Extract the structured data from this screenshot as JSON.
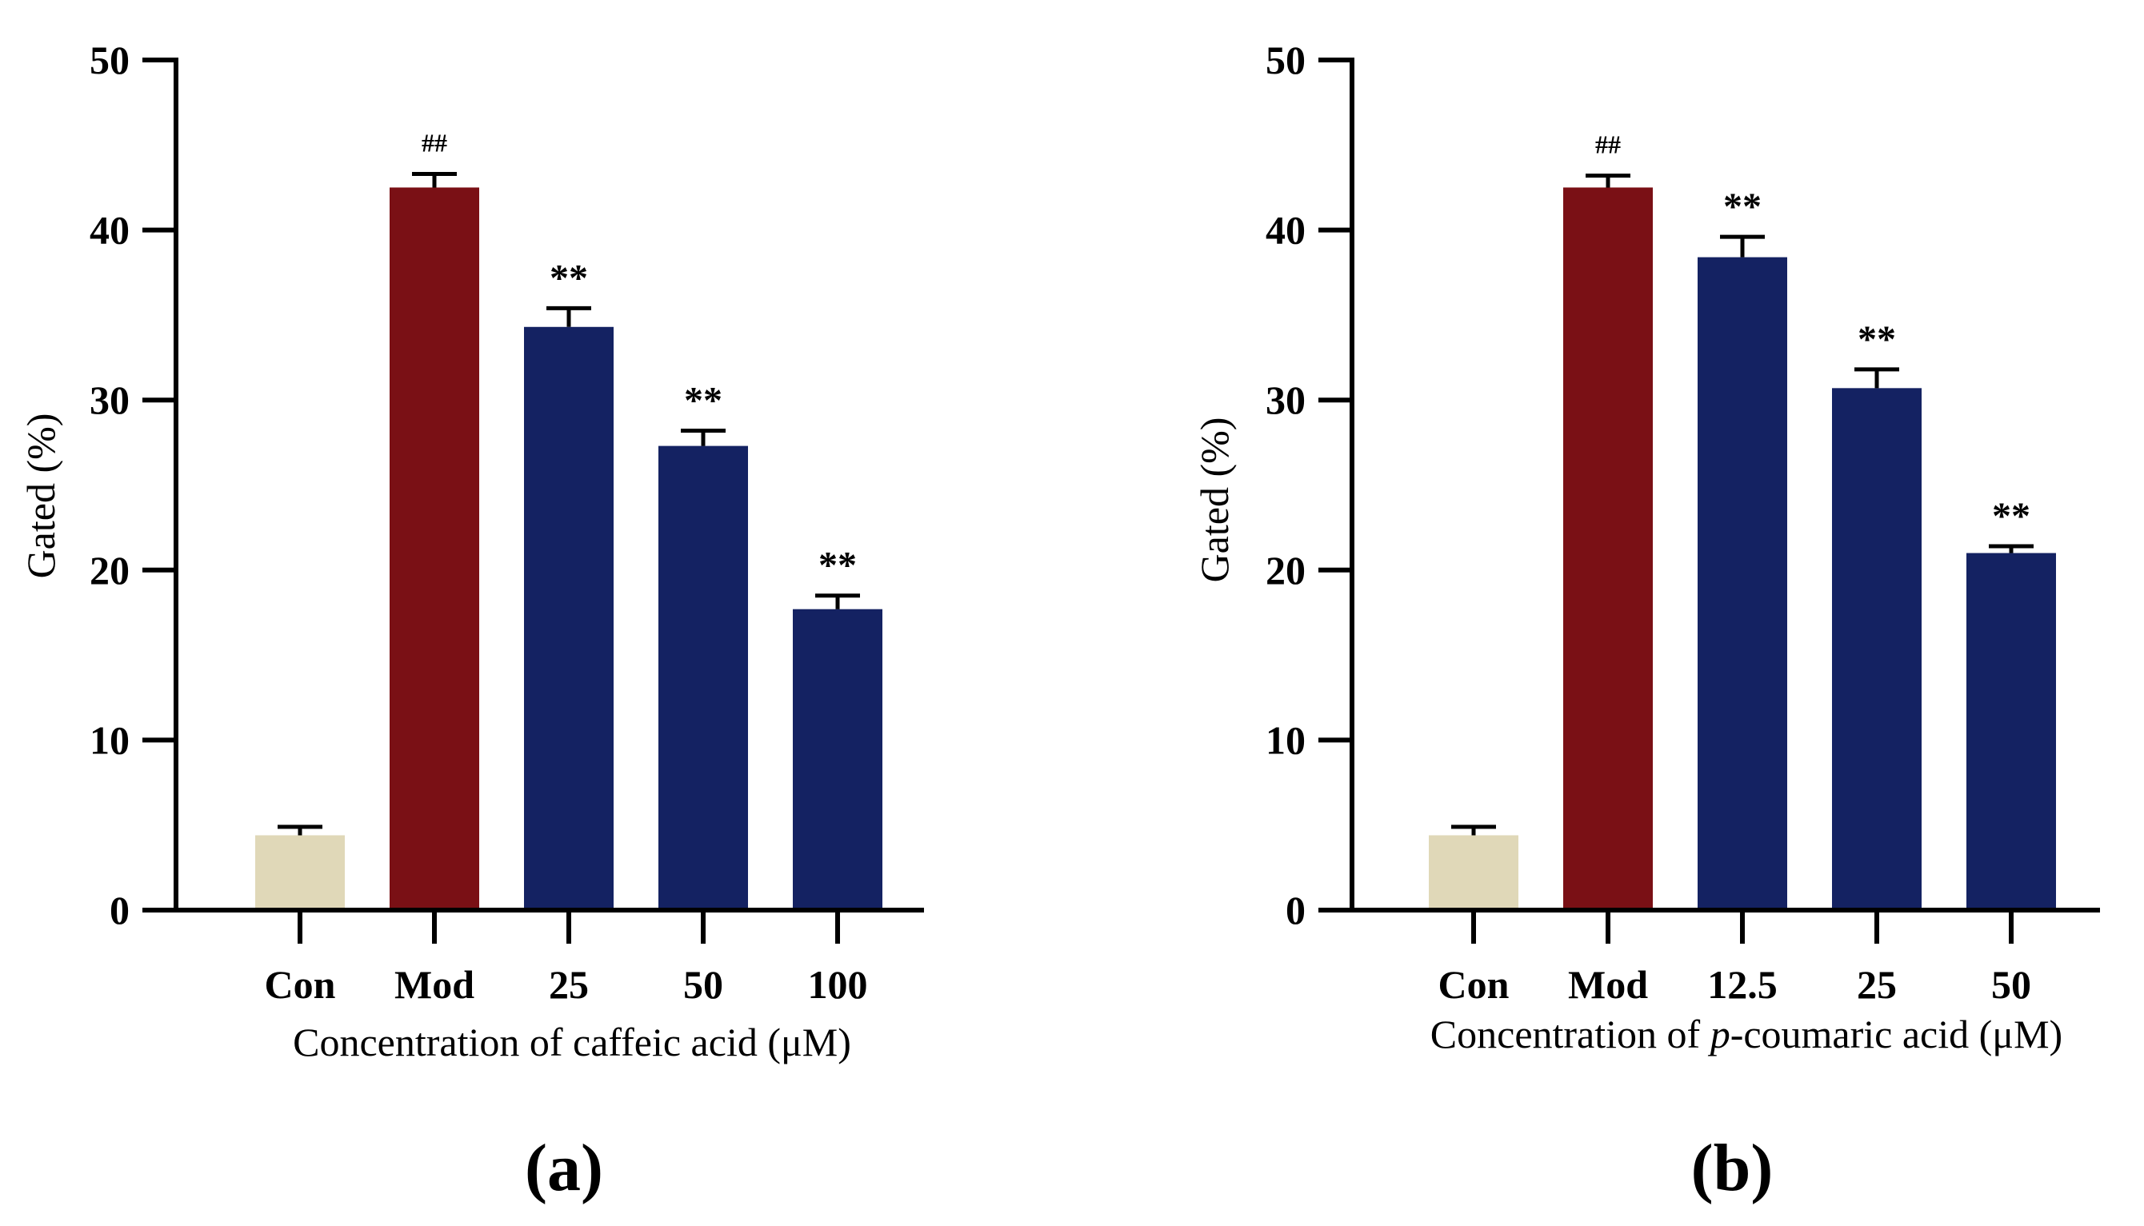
{
  "chart_data": [
    {
      "type": "bar",
      "panel_label": "(a)",
      "ylabel": "Gated (%)",
      "xlabel_prefix": "Concentration of",
      "xlabel_compound": "caffeic acid",
      "xlabel_unit": "(μM)",
      "compound_italic_prefix": "",
      "ylim": [
        0,
        50
      ],
      "yticks": [
        "0",
        "10",
        "20",
        "30",
        "40",
        "50"
      ],
      "categories": [
        "Con",
        "Mod",
        "25",
        "50",
        "100"
      ],
      "values": [
        4.4,
        42.5,
        34.3,
        27.3,
        17.7
      ],
      "errors": [
        0.5,
        0.8,
        1.1,
        0.9,
        0.8
      ],
      "significance": [
        "",
        "##",
        "**",
        "**",
        "**"
      ],
      "bar_colors": [
        "#e0d8b8",
        "#7a1015",
        "#142262",
        "#142262",
        "#142262"
      ],
      "grid": false,
      "legend": "none"
    },
    {
      "type": "bar",
      "panel_label": "(b)",
      "ylabel": "Gated (%)",
      "xlabel_prefix": "Concentration of",
      "xlabel_compound": "-coumaric acid",
      "xlabel_unit": "(μM)",
      "compound_italic_prefix": "p",
      "ylim": [
        0,
        50
      ],
      "yticks": [
        "0",
        "10",
        "20",
        "30",
        "40",
        "50"
      ],
      "categories": [
        "Con",
        "Mod",
        "12.5",
        "25",
        "50"
      ],
      "values": [
        4.4,
        42.5,
        38.4,
        30.7,
        21.0
      ],
      "errors": [
        0.5,
        0.7,
        1.2,
        1.1,
        0.4
      ],
      "significance": [
        "",
        "##",
        "**",
        "**",
        "**"
      ],
      "bar_colors": [
        "#e0d8b8",
        "#7a1015",
        "#142262",
        "#142262",
        "#142262"
      ],
      "grid": false,
      "legend": "none"
    }
  ]
}
